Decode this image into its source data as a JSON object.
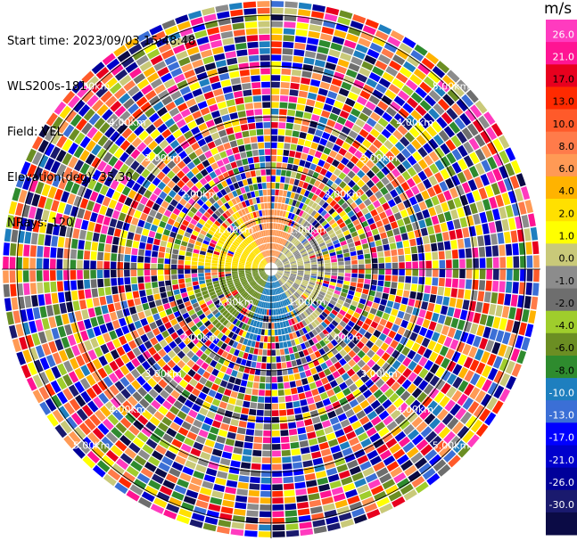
{
  "header": {
    "start_time": "Start time: 2023/09/03 15:48:48",
    "instrument": "WLS200s-181",
    "field": "Field: VEL",
    "elevation": "Elevation(deg): 35.30",
    "nrays": "NRays: 120"
  },
  "colorbar": {
    "unit": "m/s",
    "ticks": [
      "26.0",
      "21.0",
      "17.0",
      "13.0",
      "10.0",
      "8.0",
      "6.0",
      "4.0",
      "2.0",
      "1.0",
      "0.0",
      "-1.0",
      "-2.0",
      "-4.0",
      "-6.0",
      "-8.0",
      "-10.0",
      "-13.0",
      "-17.0",
      "-21.0",
      "-26.0",
      "-30.0"
    ],
    "colors": [
      "#ff3bbf",
      "#ff1493",
      "#e8001e",
      "#ff2a00",
      "#ff5a2a",
      "#ff7b4a",
      "#ff9a55",
      "#ffb300",
      "#ffe000",
      "#ffff00",
      "#c9c979",
      "#8c8c8c",
      "#6e6e6e",
      "#9fcd2c",
      "#6b8e23",
      "#2e8b2e",
      "#1e7fbf",
      "#3b6fd6",
      "#0000ff",
      "#0000cc",
      "#000099",
      "#1a1a6e",
      "#0b0b45"
    ]
  },
  "chart_data": {
    "type": "heatmap",
    "title": "",
    "field": "VEL",
    "elevation_deg": 35.3,
    "nrays": 120,
    "range_rings": [
      {
        "label": "1.00km",
        "km": 1.0
      },
      {
        "label": "2.00km",
        "km": 2.0
      },
      {
        "label": "3.00km",
        "km": 3.0
      },
      {
        "label": "4.00km",
        "km": 4.0
      },
      {
        "label": "5.00km",
        "km": 5.0
      }
    ],
    "max_range_km": 5.3,
    "near_field_pattern": [
      {
        "sector": "north",
        "dominant_value_ms": 6.0
      },
      {
        "sector": "northwest",
        "dominant_value_ms": 2.0
      },
      {
        "sector": "southwest",
        "dominant_value_ms": -6.0
      },
      {
        "sector": "south",
        "dominant_value_ms": -10.0
      },
      {
        "sector": "east",
        "dominant_value_ms": 0.0
      }
    ],
    "noise_beyond_km": 1.5
  }
}
